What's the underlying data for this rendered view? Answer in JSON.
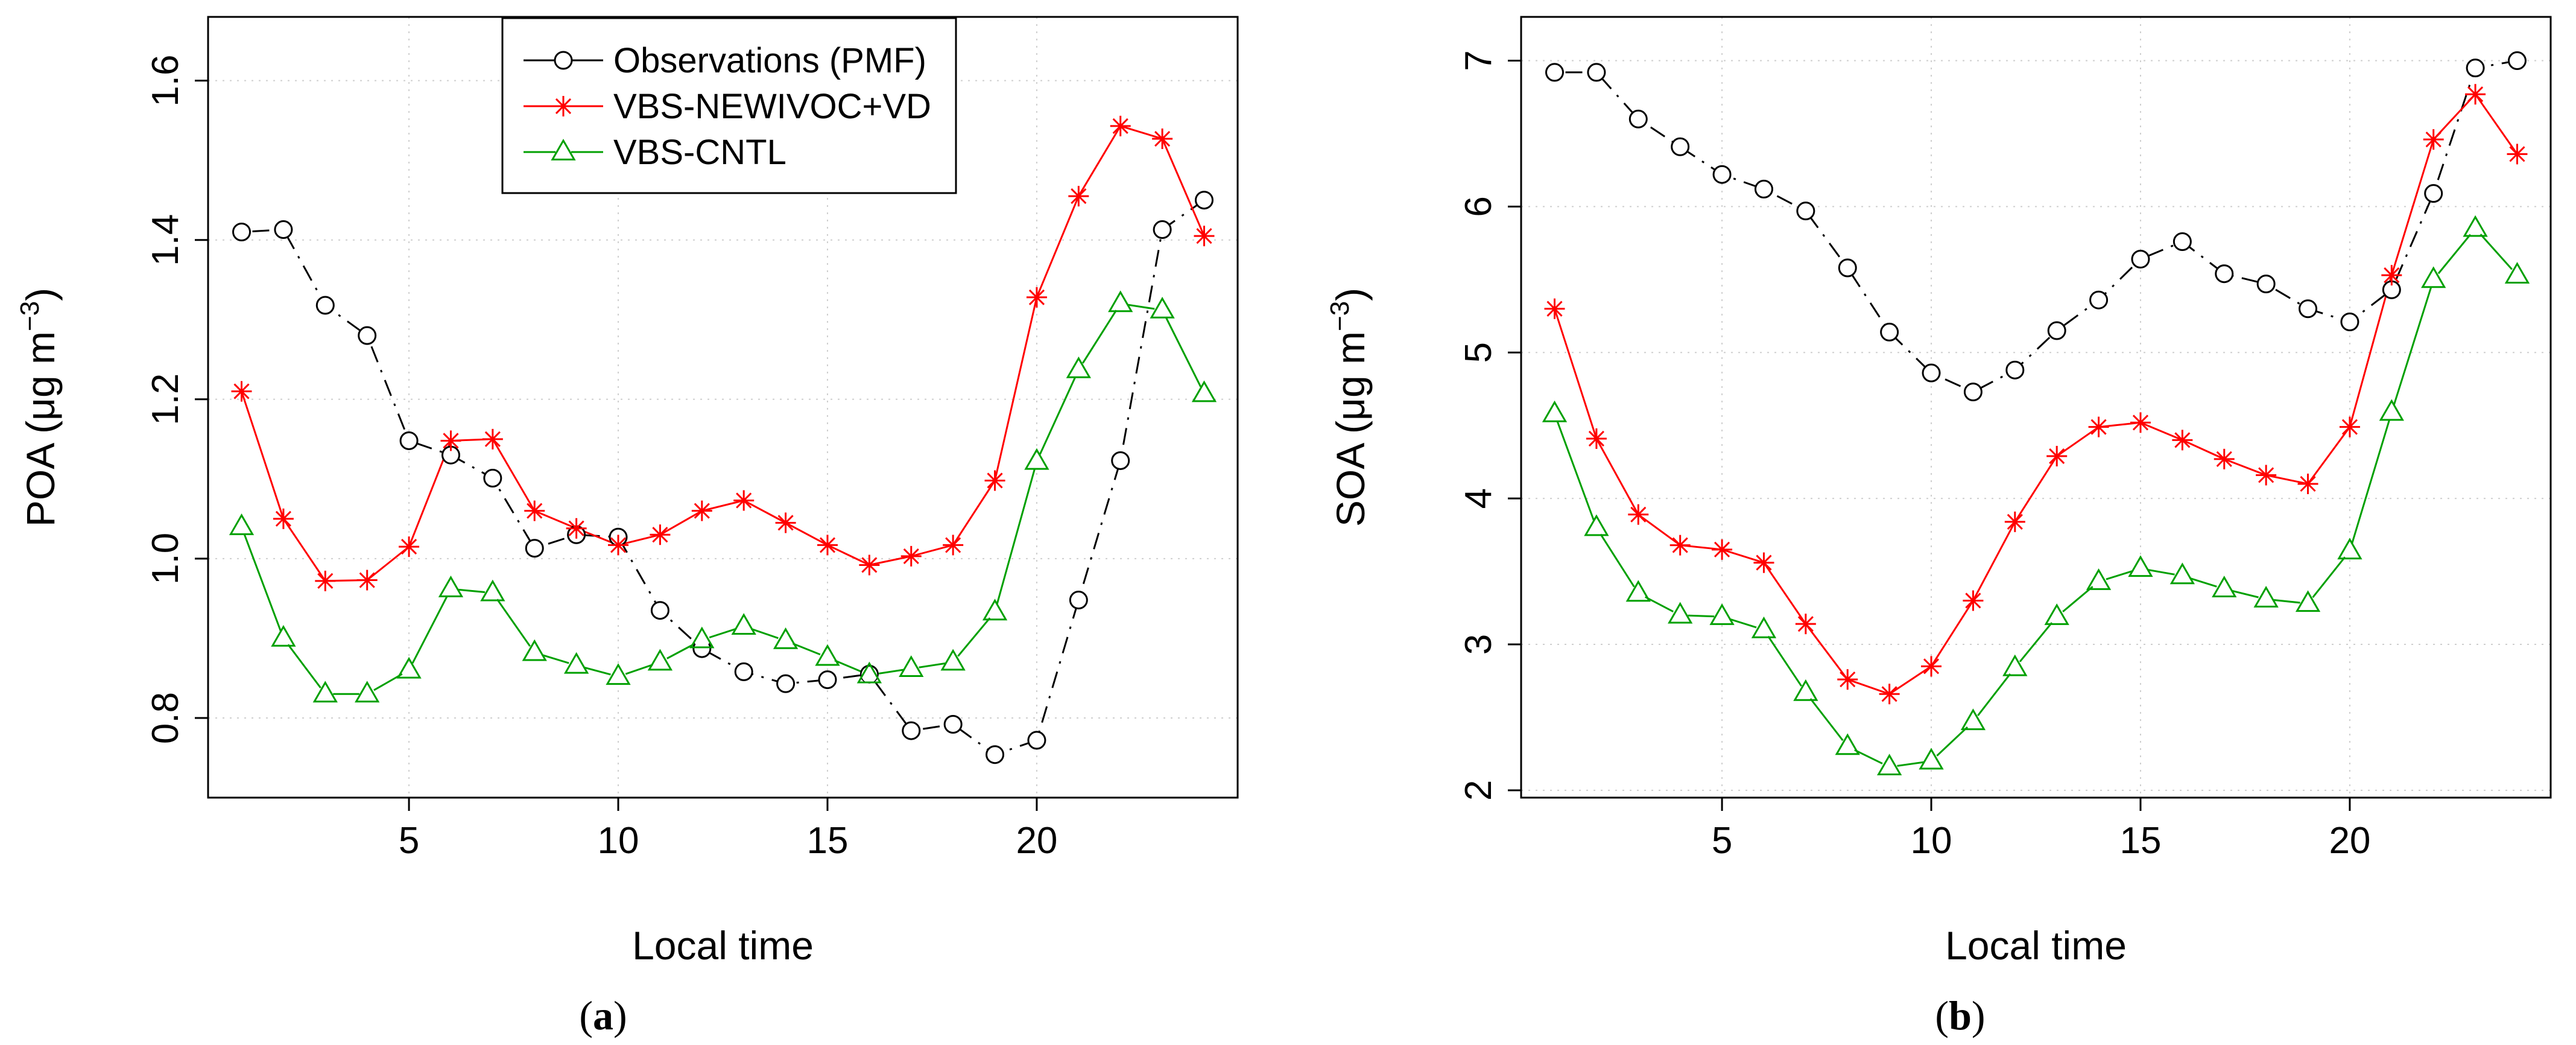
{
  "chart_data": [
    {
      "type": "line",
      "panel_label": {
        "open": "(",
        "letter": "a",
        "close": ")"
      },
      "xlabel": "Local time",
      "ylabel": {
        "main": "POA (μg m",
        "sup": "−3",
        "close": ")"
      },
      "xlim": [
        0.2,
        24.8
      ],
      "ylim": [
        0.7,
        1.68
      ],
      "xticks": [
        5,
        10,
        15,
        20
      ],
      "yticks": [
        0.8,
        1.0,
        1.2,
        1.4,
        1.6
      ],
      "ytick_labels": [
        "0.8",
        "1.0",
        "1.2",
        "1.4",
        "1.6"
      ],
      "grid": true,
      "legend": {
        "position": "top-center",
        "entries": [
          {
            "name": "Observations (PMF)",
            "color": "#000000",
            "marker": "circle"
          },
          {
            "name": "VBS-NEWIVOC+VD",
            "color": "#ff0000",
            "marker": "asterisk"
          },
          {
            "name": "VBS-CNTL",
            "color": "#00a000",
            "marker": "triangle"
          }
        ]
      },
      "x": [
        1,
        2,
        3,
        4,
        5,
        6,
        7,
        8,
        9,
        10,
        11,
        12,
        13,
        14,
        15,
        16,
        17,
        18,
        19,
        20,
        21,
        22,
        23,
        24
      ],
      "series": [
        {
          "name": "Observations (PMF)",
          "color": "#000000",
          "marker": "circle",
          "line": "dashdot",
          "values": [
            1.41,
            1.413,
            1.318,
            1.28,
            1.148,
            1.13,
            1.101,
            1.013,
            1.03,
            1.027,
            0.935,
            0.887,
            0.858,
            0.843,
            0.848,
            0.855,
            0.784,
            0.792,
            0.754,
            0.772,
            0.948,
            1.123,
            1.413,
            1.45
          ]
        },
        {
          "name": "VBS-NEWIVOC+VD",
          "color": "#ff0000",
          "marker": "asterisk",
          "line": "solid",
          "values": [
            1.21,
            1.05,
            0.972,
            0.973,
            1.015,
            1.148,
            1.15,
            1.06,
            1.038,
            1.017,
            1.03,
            1.06,
            1.073,
            1.045,
            1.017,
            0.992,
            1.003,
            1.017,
            1.098,
            1.328,
            1.455,
            1.543,
            1.527,
            1.405
          ]
        },
        {
          "name": "VBS-CNTL",
          "color": "#00a000",
          "marker": "triangle",
          "line": "solid",
          "values": [
            1.04,
            0.9,
            0.83,
            0.83,
            0.86,
            0.962,
            0.957,
            0.882,
            0.866,
            0.852,
            0.87,
            0.898,
            0.915,
            0.897,
            0.876,
            0.854,
            0.862,
            0.87,
            0.933,
            1.122,
            1.237,
            1.32,
            1.312,
            1.207
          ]
        }
      ]
    },
    {
      "type": "line",
      "panel_label": {
        "open": "(",
        "letter": "b",
        "close": ")"
      },
      "xlabel": "Local time",
      "ylabel": {
        "main": "SOA (μg m",
        "sup": "−3",
        "close": ")"
      },
      "xlim": [
        0.2,
        24.8
      ],
      "ylim": [
        1.95,
        7.3
      ],
      "xticks": [
        5,
        10,
        15,
        20
      ],
      "yticks": [
        2,
        3,
        4,
        5,
        6,
        7
      ],
      "ytick_labels": [
        "2",
        "3",
        "4",
        "5",
        "6",
        "7"
      ],
      "grid": true,
      "legend": null,
      "x": [
        1,
        2,
        3,
        4,
        5,
        6,
        7,
        8,
        9,
        10,
        11,
        12,
        13,
        14,
        15,
        16,
        17,
        18,
        19,
        20,
        21,
        22,
        23,
        24
      ],
      "series": [
        {
          "name": "Observations (PMF)",
          "color": "#000000",
          "marker": "circle",
          "line": "dashdot",
          "values": [
            6.92,
            6.92,
            6.6,
            6.41,
            6.22,
            6.12,
            5.97,
            5.58,
            5.14,
            4.86,
            4.73,
            4.88,
            5.15,
            5.36,
            5.64,
            5.76,
            5.54,
            5.47,
            5.3,
            5.21,
            5.43,
            6.09,
            6.95,
            7.0
          ]
        },
        {
          "name": "VBS-NEWIVOC+VD",
          "color": "#ff0000",
          "marker": "asterisk",
          "line": "solid",
          "values": [
            5.3,
            4.41,
            3.89,
            3.68,
            3.65,
            3.56,
            3.14,
            2.76,
            2.66,
            2.85,
            3.3,
            3.84,
            4.29,
            4.49,
            4.52,
            4.4,
            4.27,
            4.16,
            4.1,
            4.49,
            5.53,
            6.46,
            6.77,
            6.36
          ]
        },
        {
          "name": "VBS-CNTL",
          "color": "#00a000",
          "marker": "triangle",
          "line": "solid",
          "values": [
            4.58,
            3.8,
            3.35,
            3.2,
            3.19,
            3.1,
            2.67,
            2.3,
            2.16,
            2.2,
            2.47,
            2.84,
            3.19,
            3.43,
            3.52,
            3.47,
            3.38,
            3.31,
            3.28,
            3.64,
            4.59,
            5.5,
            5.85,
            5.53
          ]
        }
      ]
    }
  ]
}
